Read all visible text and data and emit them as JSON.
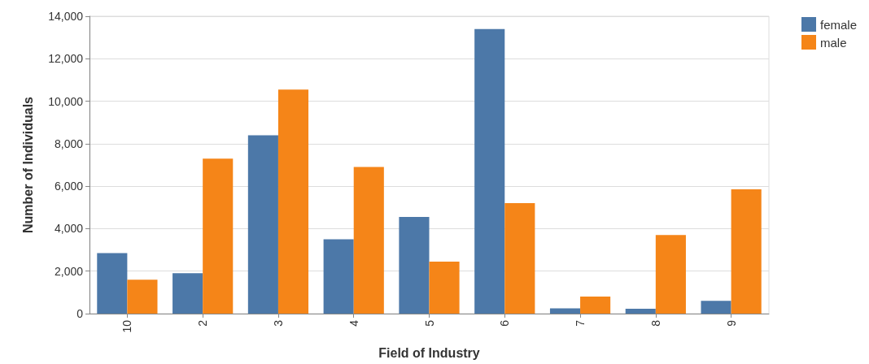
{
  "chart_data": {
    "type": "bar",
    "xlabel": "Field of Industry",
    "ylabel": "Number of Individuals",
    "categories": [
      "10",
      "2",
      "3",
      "4",
      "5",
      "6",
      "7",
      "8",
      "9"
    ],
    "series": [
      {
        "name": "female",
        "color": "#4c78a8",
        "values": [
          2850,
          1900,
          8400,
          3500,
          4550,
          13400,
          250,
          230,
          600
        ]
      },
      {
        "name": "male",
        "color": "#f58518",
        "values": [
          1600,
          7300,
          10550,
          6900,
          2450,
          5200,
          800,
          3700,
          5850
        ]
      }
    ],
    "ylim": [
      0,
      14000
    ],
    "yticks": [
      0,
      {
        "value": 2000,
        "label": "2,000"
      },
      {
        "value": 4000,
        "label": "4,000"
      },
      {
        "value": 6000,
        "label": "6,000"
      },
      {
        "value": 8000,
        "label": "8,000"
      },
      {
        "value": 10000,
        "label": "10,000"
      },
      {
        "value": 12000,
        "label": "12,000"
      },
      {
        "value": 14000,
        "label": "14,000"
      }
    ],
    "grid": "y",
    "legend": "top right"
  }
}
